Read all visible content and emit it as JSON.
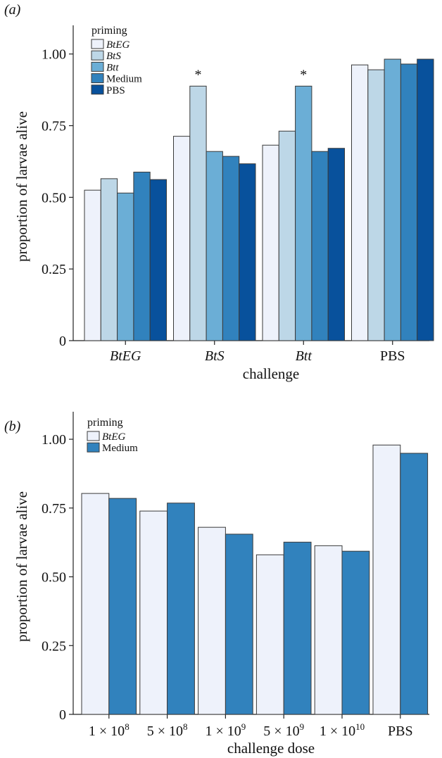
{
  "colors": {
    "BtEG": "#eef2fb",
    "BtS": "#bdd7e7",
    "Btt": "#6baed6",
    "Medium": "#3182bd",
    "PBS": "#08519c"
  },
  "chart_data": [
    {
      "panel": "(a)",
      "type": "bar",
      "xlabel": "challenge",
      "ylabel": "proportion of larvae alive",
      "ylim": [
        0,
        1.1
      ],
      "yticks": [
        0,
        0.25,
        0.5,
        0.75,
        1.0
      ],
      "ytick_labels": [
        "0",
        "0.25",
        "0.50",
        "0.75",
        "1.00"
      ],
      "categories": [
        "BtEG",
        "BtS",
        "Btt",
        "PBS"
      ],
      "italic_categories": [
        true,
        true,
        true,
        false
      ],
      "legend_title": "priming",
      "legend_position": "top-left",
      "series": [
        {
          "name": "BtEG",
          "italic": true,
          "values": [
            0.525,
            0.713,
            0.682,
            0.962
          ]
        },
        {
          "name": "BtS",
          "italic": true,
          "values": [
            0.565,
            0.888,
            0.731,
            0.945
          ]
        },
        {
          "name": "Btt",
          "italic": true,
          "values": [
            0.515,
            0.66,
            0.888,
            0.982
          ]
        },
        {
          "name": "Medium",
          "italic": false,
          "values": [
            0.588,
            0.643,
            0.66,
            0.965
          ]
        },
        {
          "name": "PBS",
          "italic": false,
          "values": [
            0.562,
            0.617,
            0.671,
            0.982
          ]
        }
      ],
      "annotations": [
        {
          "text": "*",
          "category": "BtS",
          "series": "BtS"
        },
        {
          "text": "*",
          "category": "Btt",
          "series": "Btt"
        }
      ],
      "grid": false
    },
    {
      "panel": "(b)",
      "type": "bar",
      "xlabel": "challenge dose",
      "ylabel": "proportion of larvae alive",
      "ylim": [
        0,
        1.1
      ],
      "yticks": [
        0,
        0.25,
        0.5,
        0.75,
        1.0
      ],
      "ytick_labels": [
        "0",
        "0.25",
        "0.50",
        "0.75",
        "1.00"
      ],
      "categories": [
        "1 × 10^8",
        "5 × 10^8",
        "1 × 10^9",
        "5 × 10^9",
        "1 × 10^10",
        "PBS"
      ],
      "category_labels": [
        {
          "base": "1 × 10",
          "exp": "8"
        },
        {
          "base": "5 × 10",
          "exp": "8"
        },
        {
          "base": "1 × 10",
          "exp": "9"
        },
        {
          "base": "5 × 10",
          "exp": "9"
        },
        {
          "base": "1 × 10",
          "exp": "10"
        },
        {
          "base": "PBS",
          "exp": ""
        }
      ],
      "legend_title": "priming",
      "legend_position": "top-left",
      "series": [
        {
          "name": "BtEG",
          "italic": true,
          "values": [
            0.803,
            0.739,
            0.68,
            0.58,
            0.613,
            0.979
          ]
        },
        {
          "name": "Medium",
          "italic": false,
          "values": [
            0.785,
            0.768,
            0.655,
            0.626,
            0.593,
            0.949
          ]
        }
      ],
      "grid": false
    }
  ]
}
